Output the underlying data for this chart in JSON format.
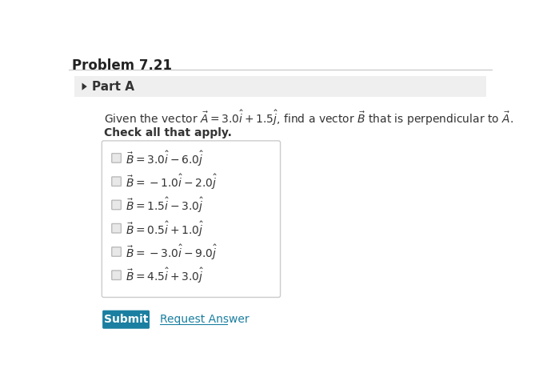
{
  "title": "Problem 7.21",
  "part_label": "Part A",
  "check_label": "Check all that apply.",
  "submit_text": "Submit",
  "request_answer_text": "Request Answer",
  "bg_color": "#ffffff",
  "part_bg_color": "#efefef",
  "box_border_color": "#cccccc",
  "title_color": "#222222",
  "part_color": "#333333",
  "text_color": "#333333",
  "submit_bg": "#1a7fa0",
  "submit_text_color": "#ffffff",
  "request_color": "#1a7fa0",
  "checkbox_color": "#bbbbbb",
  "separator_color": "#cccccc"
}
